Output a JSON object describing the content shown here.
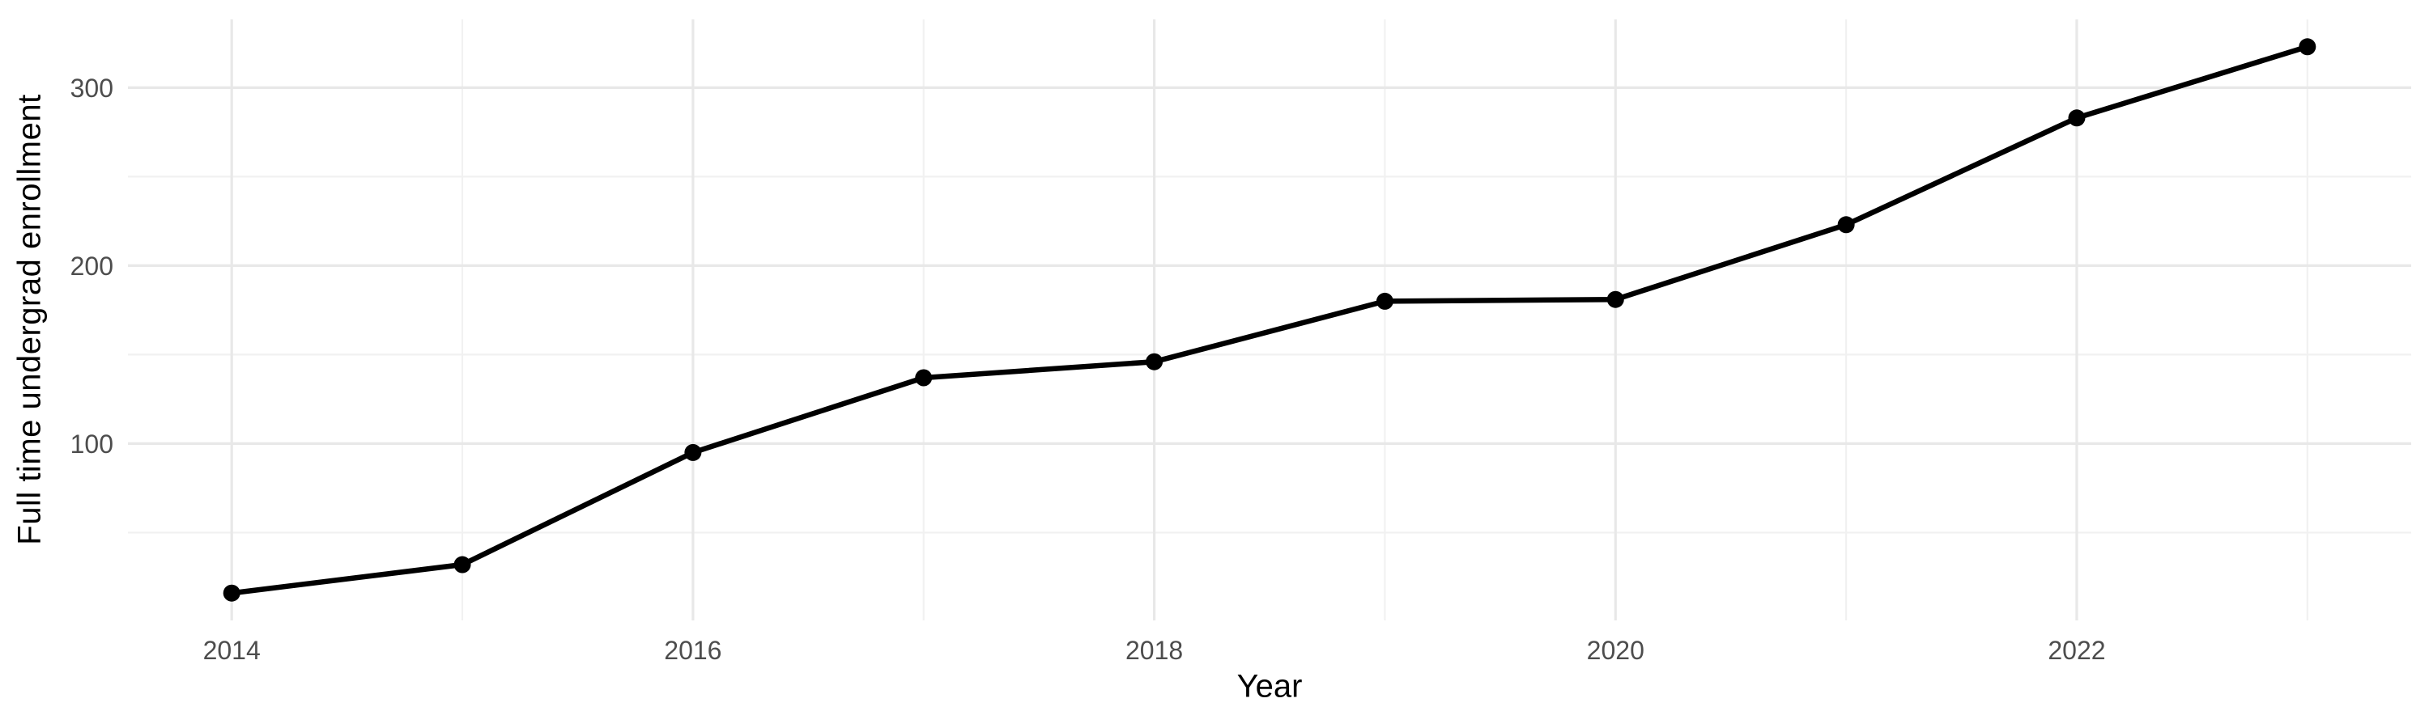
{
  "chart_data": {
    "type": "line",
    "title": "",
    "xlabel": "Year",
    "ylabel": "Full time undergrad enrollment",
    "x": [
      2014,
      2015,
      2016,
      2017,
      2018,
      2019,
      2020,
      2021,
      2022,
      2023
    ],
    "values": [
      16,
      32,
      95,
      137,
      146,
      180,
      181,
      223,
      283,
      323
    ],
    "x_ticks": [
      2014,
      2016,
      2018,
      2020,
      2022
    ],
    "y_ticks": [
      100,
      200,
      300
    ],
    "x_minor": [
      2015,
      2017,
      2019,
      2021,
      2023
    ],
    "y_minor": [
      50,
      150,
      250
    ],
    "xlim": [
      2013.55,
      2023.45
    ],
    "ylim": [
      0.65,
      338.35
    ],
    "grid": "on",
    "legend": "none",
    "colors": {
      "line": "#000000",
      "point": "#000000",
      "grid_major": "#E8E8E8",
      "grid_minor": "#F1F1F1",
      "tick_label": "#4D4D4D",
      "axis_title": "#000000",
      "background": "#FFFFFF"
    }
  }
}
